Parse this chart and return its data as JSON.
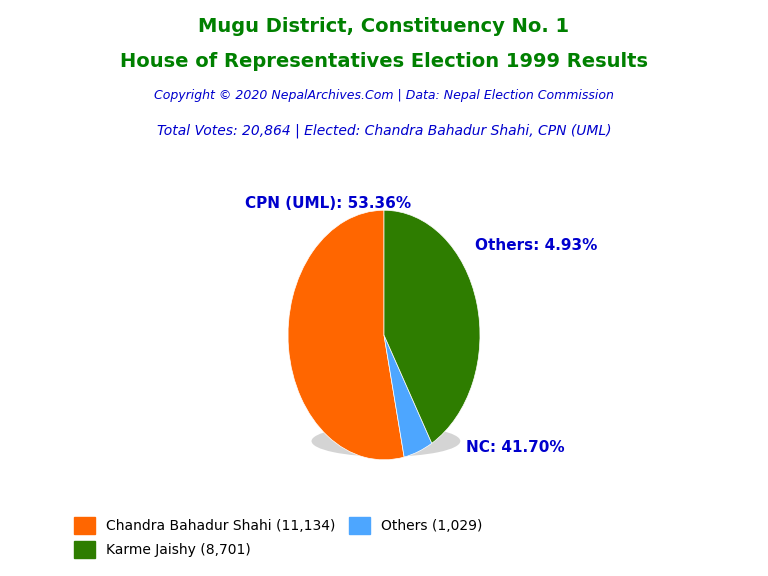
{
  "title_line1": "Mugu District, Constituency No. 1",
  "title_line2": "House of Representatives Election 1999 Results",
  "title_color": "#008000",
  "copyright_text": "Copyright © 2020 NepalArchives.Com | Data: Nepal Election Commission",
  "copyright_color": "#0000CD",
  "total_votes_text": "Total Votes: 20,864 | Elected: Chandra Bahadur Shahi, CPN (UML)",
  "total_votes_color": "#0000CD",
  "slices": [
    53.36,
    4.93,
    41.7
  ],
  "slice_colors": [
    "#FF6600",
    "#4DA6FF",
    "#2E7D00"
  ],
  "slice_labels": [
    "CPN (UML): 53.36%",
    "Others: 4.93%",
    "NC: 41.70%"
  ],
  "label_color": "#0000CD",
  "legend_labels": [
    "Chandra Bahadur Shahi (11,134)",
    "Karme Jaishy (8,701)",
    "Others (1,029)"
  ],
  "legend_colors": [
    "#FF6600",
    "#2E7D00",
    "#4DA6FF"
  ],
  "background_color": "#FFFFFF",
  "startangle": 90
}
